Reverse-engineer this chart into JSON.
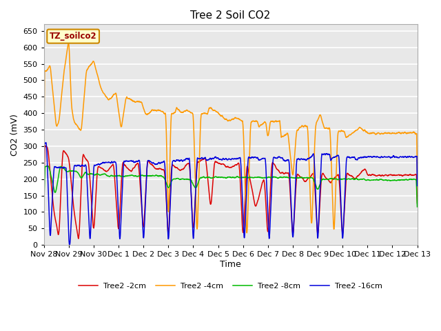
{
  "title": "Tree 2 Soil CO2",
  "xlabel": "Time",
  "ylabel": "CO2 (mV)",
  "ylim": [
    0,
    670
  ],
  "yticks": [
    0,
    50,
    100,
    150,
    200,
    250,
    300,
    350,
    400,
    450,
    500,
    550,
    600,
    650
  ],
  "legend_label": "TZ_soilco2",
  "series_colors": {
    "2cm": "#dd0000",
    "4cm": "#ff9900",
    "8cm": "#00bb00",
    "16cm": "#0000dd"
  },
  "legend_labels": [
    "Tree2 -2cm",
    "Tree2 -4cm",
    "Tree2 -8cm",
    "Tree2 -16cm"
  ],
  "fig_facecolor": "#ffffff",
  "plot_facecolor": "#e8e8e8",
  "grid_color": "#ffffff",
  "annotation_bg": "#ffffcc",
  "annotation_border": "#cc8800",
  "annotation_text_color": "#990000"
}
